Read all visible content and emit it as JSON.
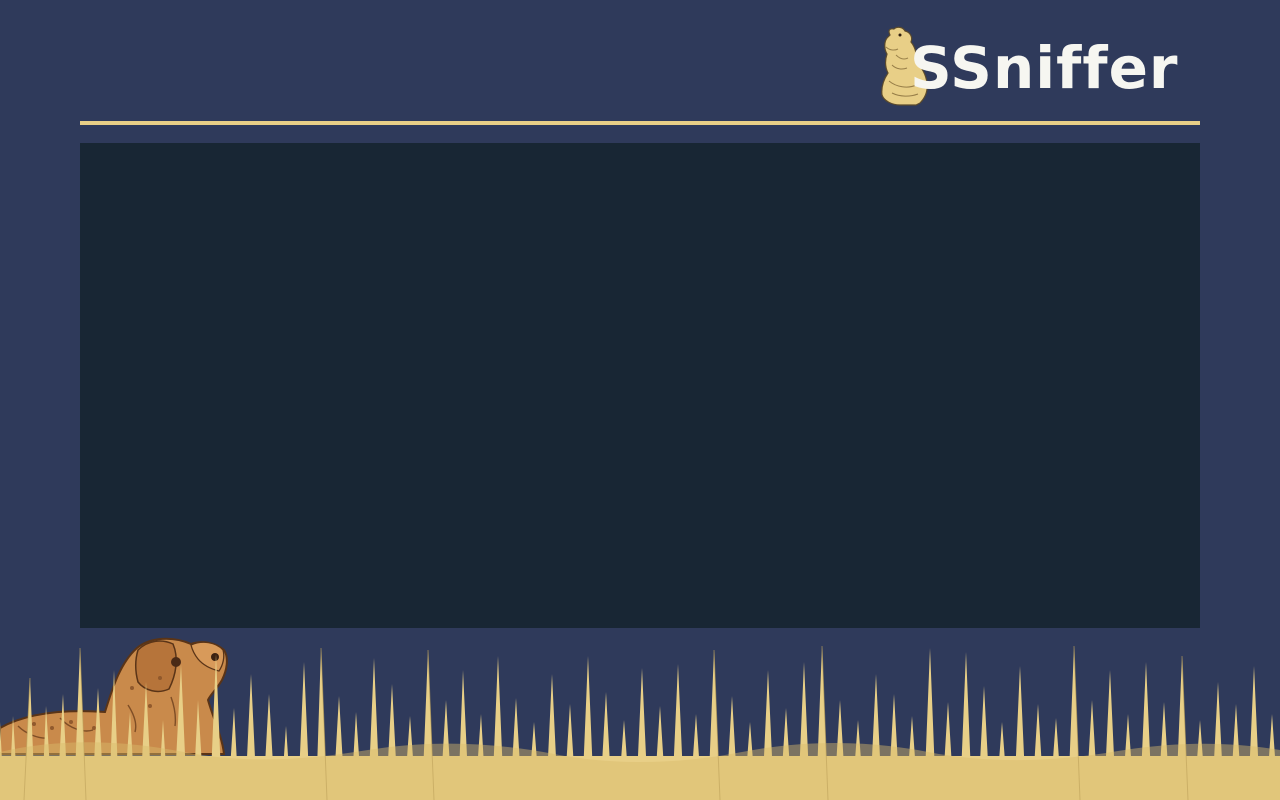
{
  "brand": {
    "name": "SSniffer",
    "mascot_icon": "prairie-dog-icon",
    "decoration_icons": [
      "dog-icon",
      "grass-icon"
    ]
  },
  "colors": {
    "page_background": "#2f3a5b",
    "panel_background": "#182634",
    "accent_rule": "#e8cf87",
    "logo_text": "#f6f6f1",
    "grass": "#e8cf87",
    "dog": "#c98a4b"
  },
  "content_panel": {
    "text": ""
  }
}
